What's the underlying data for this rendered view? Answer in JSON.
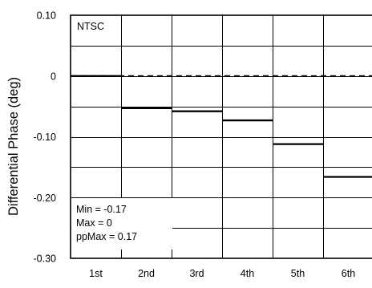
{
  "chart_data": {
    "type": "line",
    "subtype": "step",
    "title": "",
    "xlabel": "",
    "ylabel": "Differential Phase (deg)",
    "ylim": [
      -0.3,
      0.1
    ],
    "yticks": [
      0.1,
      0,
      -0.1,
      -0.2,
      -0.3
    ],
    "ytick_labels": [
      "0.10",
      "0",
      "-0.10",
      "-0.20",
      "-0.30"
    ],
    "categories": [
      "1st",
      "2nd",
      "3rd",
      "4th",
      "5th",
      "6th"
    ],
    "grid": true,
    "series": [
      {
        "values": [
          0,
          -0.053,
          -0.058,
          -0.073,
          -0.112,
          -0.166
        ]
      }
    ],
    "reference_line": {
      "value": 0,
      "style": "dashed"
    },
    "annotations": {
      "standard": "NTSC",
      "stats": {
        "min": "Min = -0.17",
        "max": "Max = 0",
        "ppmax": "ppMax = 0.17"
      }
    }
  }
}
